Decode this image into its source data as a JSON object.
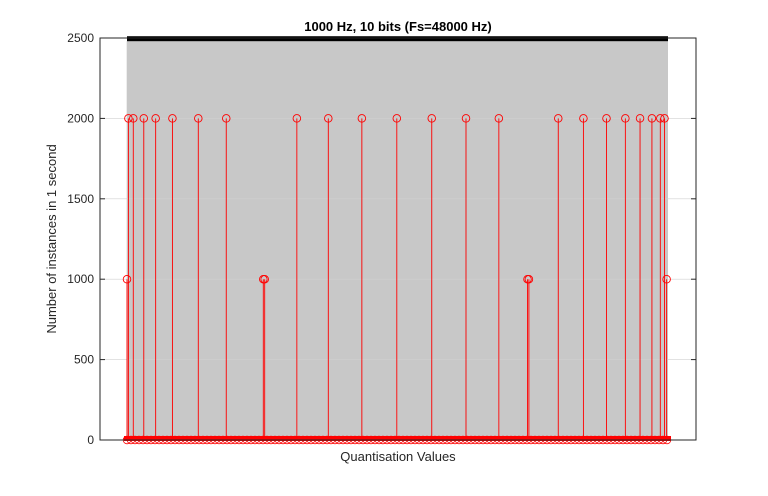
{
  "chart_data": {
    "type": "stem",
    "title": "1000 Hz, 10 bits (Fs=48000 Hz)",
    "xlabel": "Quantisation Values",
    "ylabel": "Number of instances in 1 second",
    "x_ticks_shown": false,
    "ylim": [
      0,
      2500
    ],
    "yticks": [
      0,
      500,
      1000,
      1500,
      2000,
      2500
    ],
    "ytick_labels": [
      "0",
      "500",
      "1000",
      "1500",
      "2000",
      "2500"
    ],
    "grid": true,
    "stem_color": "#ff0000",
    "baseline_marker_color": "#ff0000",
    "background_band": {
      "description_value": 2480,
      "color": "#cccccc"
    },
    "top_bar_color": "#000000",
    "series": [
      {
        "values_nonzero": [
          {
            "x": 1,
            "y": 1000
          },
          {
            "x": 3,
            "y": 2000
          },
          {
            "x": 10,
            "y": 2000
          },
          {
            "x": 25,
            "y": 2000
          },
          {
            "x": 42,
            "y": 2000
          },
          {
            "x": 66,
            "y": 2000
          },
          {
            "x": 103,
            "y": 2000
          },
          {
            "x": 143,
            "y": 2000
          },
          {
            "x": 196,
            "y": 1000
          },
          {
            "x": 198,
            "y": 1000
          },
          {
            "x": 244,
            "y": 2000
          },
          {
            "x": 289,
            "y": 2000
          },
          {
            "x": 337,
            "y": 2000
          },
          {
            "x": 387,
            "y": 2000
          },
          {
            "x": 437,
            "y": 2000
          },
          {
            "x": 486,
            "y": 2000
          },
          {
            "x": 533,
            "y": 2000
          },
          {
            "x": 574,
            "y": 1000
          },
          {
            "x": 576,
            "y": 1000
          },
          {
            "x": 618,
            "y": 2000
          },
          {
            "x": 654,
            "y": 2000
          },
          {
            "x": 687,
            "y": 2000
          },
          {
            "x": 714,
            "y": 2000
          },
          {
            "x": 735,
            "y": 2000
          },
          {
            "x": 752,
            "y": 2000
          },
          {
            "x": 764,
            "y": 2000
          },
          {
            "x": 770,
            "y": 2000
          },
          {
            "x": 773,
            "y": 1000
          }
        ],
        "x_range": [
          1,
          775
        ],
        "other_values": 0
      }
    ]
  }
}
